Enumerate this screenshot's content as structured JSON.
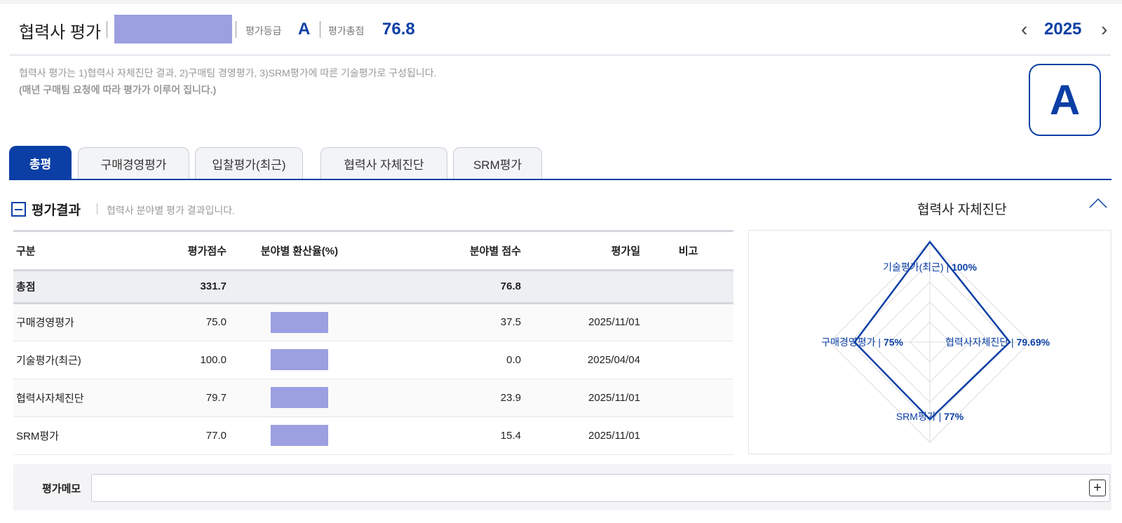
{
  "header": {
    "title": "협력사 평가",
    "grade_label": "평가등급",
    "grade": "A",
    "total_label": "평가총점",
    "total": "76.8",
    "year": "2025"
  },
  "description": {
    "line1": "협력사 평가는 1)협력사 자체진단 결과, 2)구매팀 경영평가, 3)SRM평가에 따른 기술평가로 구성됩니다.",
    "line2": "(매년 구매팀 요청에 따라 평가가 이루어 집니다.)"
  },
  "grade_badge": "A",
  "tabs": [
    {
      "label": "총평"
    },
    {
      "label": "구매경영평가"
    },
    {
      "label": "입찰평가(최근)"
    },
    {
      "label": "협력사 자체진단"
    },
    {
      "label": "SRM평가"
    }
  ],
  "section": {
    "title": "평가결과",
    "subtitle": "협력사 분야별 평가 결과입니다."
  },
  "table": {
    "headers": [
      "구분",
      "평가점수",
      "분야별 환산율(%)",
      "분야별 점수",
      "평가일",
      "비고"
    ],
    "total": {
      "name": "총점",
      "score": "331.7",
      "field_score": "76.8"
    },
    "rows": [
      {
        "name": "구매경영평가",
        "score": "75.0",
        "field_score": "37.5",
        "date": "2025/11/01"
      },
      {
        "name": "기술평가(최근)",
        "score": "100.0",
        "field_score": "0.0",
        "date": "2025/04/04"
      },
      {
        "name": "협력사자체진단",
        "score": "79.7",
        "field_score": "23.9",
        "date": "2025/11/01"
      },
      {
        "name": "SRM평가",
        "score": "77.0",
        "field_score": "15.4",
        "date": "2025/11/01"
      }
    ]
  },
  "chart_title": "협력사 자체진단",
  "chart_data": {
    "type": "radar",
    "max": 100,
    "rings": 5,
    "axes": [
      {
        "name": "기술평가(최근)",
        "value": 100,
        "label": "100%"
      },
      {
        "name": "협력사자체진단",
        "value": 79.69,
        "label": "79.69%"
      },
      {
        "name": "SRM평가",
        "value": 77,
        "label": "77%"
      },
      {
        "name": "구매경영평가",
        "value": 75,
        "label": "75%"
      }
    ],
    "color": "#0b3fa5"
  },
  "memo": {
    "label": "평가메모",
    "value": ""
  }
}
